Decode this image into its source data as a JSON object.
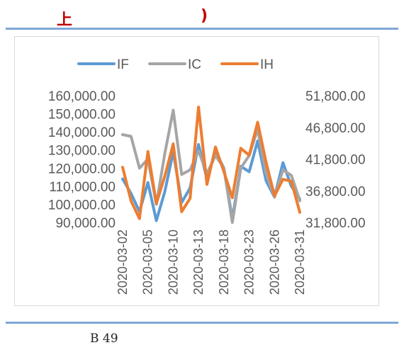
{
  "header": {
    "left_text": "上",
    "right_text": ")",
    "text_color": "#c00000",
    "rule_color": "#7ea7d6"
  },
  "caption": "B 49",
  "chart_data": {
    "type": "line",
    "title": "",
    "xlabel": "",
    "ylabel": "",
    "grid": false,
    "legend_position": "top",
    "x": [
      "2020-03-02",
      "2020-03-03",
      "2020-03-04",
      "2020-03-05",
      "2020-03-06",
      "2020-03-09",
      "2020-03-10",
      "2020-03-11",
      "2020-03-12",
      "2020-03-13",
      "2020-03-16",
      "2020-03-17",
      "2020-03-18",
      "2020-03-19",
      "2020-03-20",
      "2020-03-23",
      "2020-03-24",
      "2020-03-25",
      "2020-03-26",
      "2020-03-27",
      "2020-03-30",
      "2020-03-31"
    ],
    "x_tick_labels": [
      "2020-03-02",
      "2020-03-05",
      "2020-03-10",
      "2020-03-13",
      "2020-03-18",
      "2020-03-23",
      "2020-03-26",
      "2020-03-31"
    ],
    "y_left": {
      "min": 90000,
      "max": 160000,
      "ticks": [
        "160,000.00",
        "150,000.00",
        "140,000.00",
        "130,000.00",
        "120,000.00",
        "110,000.00",
        "100,000.00",
        "90,000.00"
      ]
    },
    "y_right": {
      "min": 31800,
      "max": 51800,
      "ticks": [
        "51,800.00",
        "46,800.00",
        "41,800.00",
        "36,800.00",
        "31,800.00"
      ]
    },
    "series": [
      {
        "name": "IF",
        "color": "#5b9bd5",
        "axis": "left",
        "values": [
          114000,
          106000,
          96000,
          112000,
          91000,
          107000,
          129000,
          101000,
          109000,
          133000,
          114000,
          129000,
          120000,
          92000,
          121000,
          118000,
          135000,
          113000,
          104000,
          123000,
          110000,
          103000
        ]
      },
      {
        "name": "IC",
        "color": "#a5a5a5",
        "axis": "left",
        "values": [
          138500,
          137500,
          120000,
          125000,
          100000,
          128000,
          152000,
          116500,
          119000,
          129500,
          117000,
          127000,
          120000,
          90000,
          120000,
          127000,
          141500,
          117000,
          104000,
          119000,
          116000,
          102000
        ]
      },
      {
        "name": "IH",
        "color": "#ed7d31",
        "axis": "right",
        "values": [
          40500,
          35200,
          32400,
          43000,
          34800,
          39100,
          44200,
          33500,
          35600,
          50000,
          37800,
          43700,
          39800,
          35700,
          43500,
          42400,
          47600,
          41300,
          36000,
          38600,
          38300,
          33400
        ]
      }
    ]
  }
}
